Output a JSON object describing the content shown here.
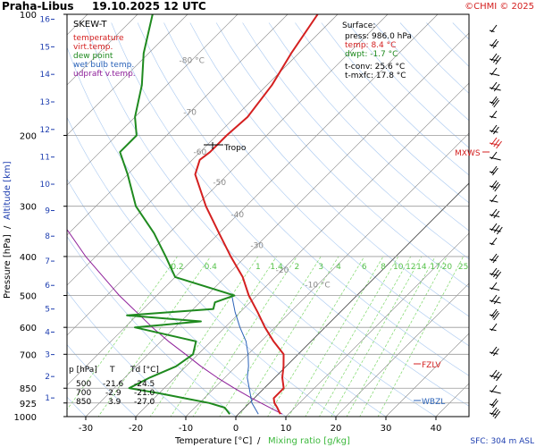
{
  "header": {
    "station": "Praha-Libus",
    "datetime": "19.10.2025 12 UTC",
    "copyright": "©CHMI © 2025"
  },
  "legend": {
    "title": "SKEW-T",
    "items": [
      {
        "label": "temperature",
        "color": "#d42020"
      },
      {
        "label": "virt.temp.",
        "color": "#d42020"
      },
      {
        "label": "dew point",
        "color": "#1f8a1f"
      },
      {
        "label": "wet bulb temp.",
        "color": "#2a62b8"
      },
      {
        "label": "udpraft v.temp.",
        "color": "#8e1f9a"
      }
    ]
  },
  "surface": {
    "title": "Surface:",
    "rows": [
      {
        "label": "press: 986.0 hPa",
        "color": "#000000"
      },
      {
        "label": "temp: 8.4 °C",
        "color": "#d42020"
      },
      {
        "label": "dwpt: -1.7 °C",
        "color": "#1f8a1f"
      },
      {
        "label": "t-conv: 25.6 °C",
        "color": "#000000"
      },
      {
        "label": "t-mxfc: 17.8 °C",
        "color": "#000000"
      }
    ]
  },
  "table": {
    "header": [
      "p [hPa]",
      "T",
      "Td [°C]"
    ],
    "rows": [
      [
        "500",
        "-21.6",
        "-24.5"
      ],
      [
        "700",
        "-2.9",
        "-21.0"
      ],
      [
        "850",
        "3.9",
        "-27.0"
      ]
    ]
  },
  "markers": {
    "tropo": "Tropo",
    "mxws": "MXWS",
    "fzlv": "FZLV",
    "wbzl": "WBZL"
  },
  "footer": {
    "sfc": "SFC: 304 m ASL"
  },
  "axes": {
    "xlabel_temp": "Temperature [°C]",
    "xlabel_sep": "/",
    "xlabel_mix": "Mixing ratio [g/kg]",
    "ylabel_pres": "Pressure [hPa]",
    "ylabel_sep": "/",
    "ylabel_alt": "Altitude [km]"
  },
  "colors": {
    "temperature": "#d42020",
    "dewpoint": "#1f8a1f",
    "wetbulb": "#2a62b8",
    "parcel": "#8e1f9a",
    "altitude": "#1f3fb0",
    "isotherm": "#808080",
    "mixing": "#7ed86a",
    "adiabat": "#a8c8f0"
  },
  "chart_data": {
    "type": "skew-t",
    "xlabel": "Temperature [°C]",
    "ylabel": "Pressure [hPa]",
    "x_ticks": [
      -30,
      -20,
      -10,
      0,
      10,
      20,
      30,
      40
    ],
    "pressure_ticks": [
      100,
      200,
      300,
      400,
      500,
      600,
      700,
      850,
      925,
      1000
    ],
    "altitude_ticks_km": [
      1,
      2,
      3,
      4,
      5,
      6,
      7,
      8,
      9,
      10,
      11,
      12,
      13,
      14,
      15,
      16
    ],
    "isotherm_labels": [
      "-80 °C",
      "-70",
      "-60",
      "-50",
      "-40",
      "-30",
      "-20",
      "-10 °C"
    ],
    "mixing_ratio_labels": [
      "0.2",
      "0.4",
      "1",
      "1.4",
      "2",
      "3",
      "4",
      "6",
      "8",
      "10",
      "12",
      "14",
      "17",
      "20",
      "25"
    ],
    "series": [
      {
        "name": "temperature",
        "points": [
          [
            986,
            8.4
          ],
          [
            950,
            6.5
          ],
          [
            925,
            5.0
          ],
          [
            900,
            3.9
          ],
          [
            875,
            3.9
          ],
          [
            850,
            3.9
          ],
          [
            800,
            1.5
          ],
          [
            750,
            -0.5
          ],
          [
            700,
            -2.9
          ],
          [
            650,
            -7.5
          ],
          [
            600,
            -12.0
          ],
          [
            550,
            -16.5
          ],
          [
            500,
            -21.6
          ],
          [
            450,
            -26.5
          ],
          [
            400,
            -33.0
          ],
          [
            350,
            -40.0
          ],
          [
            300,
            -48.0
          ],
          [
            250,
            -56.5
          ],
          [
            230,
            -58.5
          ],
          [
            220,
            -58.0
          ],
          [
            200,
            -58.0
          ],
          [
            180,
            -57.5
          ],
          [
            150,
            -59.0
          ],
          [
            125,
            -61.5
          ],
          [
            100,
            -64.0
          ]
        ]
      },
      {
        "name": "dew point",
        "points": [
          [
            986,
            -1.7
          ],
          [
            950,
            -4.0
          ],
          [
            925,
            -8.0
          ],
          [
            900,
            -14.0
          ],
          [
            875,
            -20.0
          ],
          [
            850,
            -27.0
          ],
          [
            800,
            -25.0
          ],
          [
            750,
            -22.0
          ],
          [
            700,
            -21.0
          ],
          [
            650,
            -23.0
          ],
          [
            600,
            -38.0
          ],
          [
            580,
            -26.0
          ],
          [
            560,
            -42.0
          ],
          [
            540,
            -26.0
          ],
          [
            520,
            -27.0
          ],
          [
            500,
            -24.5
          ],
          [
            450,
            -40.0
          ],
          [
            400,
            -46.0
          ],
          [
            350,
            -53.0
          ],
          [
            300,
            -62.0
          ],
          [
            250,
            -70.0
          ],
          [
            220,
            -76.0
          ],
          [
            200,
            -76.0
          ],
          [
            180,
            -80.0
          ],
          [
            150,
            -85.0
          ],
          [
            125,
            -91.0
          ],
          [
            100,
            -97.0
          ]
        ]
      },
      {
        "name": "wet bulb temp.",
        "points": [
          [
            986,
            4.0
          ],
          [
            925,
            0.5
          ],
          [
            850,
            -3.0
          ],
          [
            800,
            -5.5
          ],
          [
            750,
            -7.5
          ],
          [
            700,
            -10.0
          ],
          [
            650,
            -13.0
          ],
          [
            600,
            -17.0
          ],
          [
            550,
            -21.0
          ],
          [
            500,
            -25.0
          ]
        ]
      },
      {
        "name": "udpraft v.temp.",
        "points": [
          [
            986,
            8.8
          ],
          [
            900,
            -0.5
          ],
          [
            850,
            -6.0
          ],
          [
            800,
            -11.5
          ],
          [
            750,
            -17.0
          ],
          [
            700,
            -22.5
          ],
          [
            650,
            -28.5
          ],
          [
            600,
            -34.5
          ],
          [
            500,
            -47.5
          ],
          [
            400,
            -62.0
          ],
          [
            300,
            -79.0
          ],
          [
            200,
            -102.0
          ],
          [
            150,
            -118.0
          ],
          [
            100,
            -138.0
          ]
        ]
      }
    ]
  }
}
